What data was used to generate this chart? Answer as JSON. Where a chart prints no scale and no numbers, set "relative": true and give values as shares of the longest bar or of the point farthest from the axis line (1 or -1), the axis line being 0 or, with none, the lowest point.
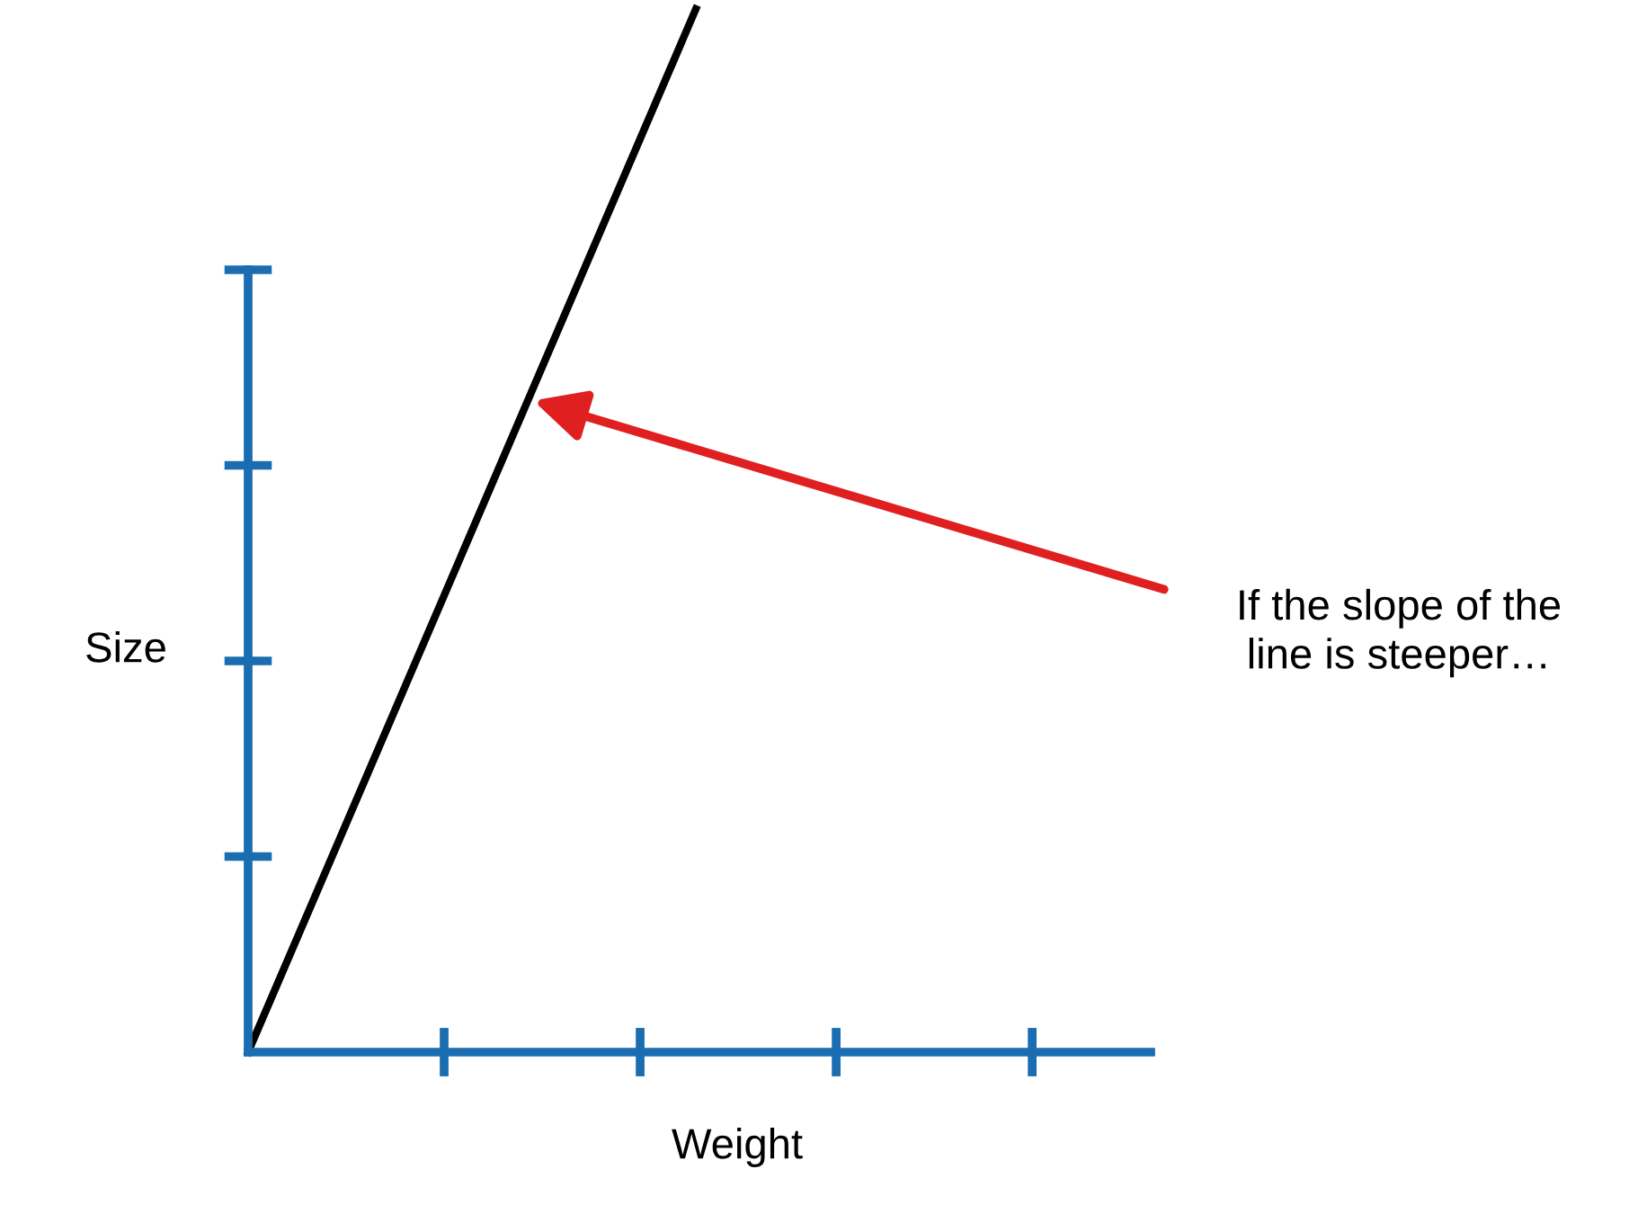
{
  "chart_data": {
    "type": "line",
    "relative": true,
    "categories": [
      null,
      null
    ],
    "xlabel": "Weight",
    "ylabel": "Size",
    "series": [
      {
        "color": "#000000",
        "values": [
          0,
          1
        ]
      }
    ],
    "annotations": [
      "If the slope of the\nline is steeper…"
    ],
    "grid": false,
    "marker": "none",
    "line_style": "solid"
  }
}
